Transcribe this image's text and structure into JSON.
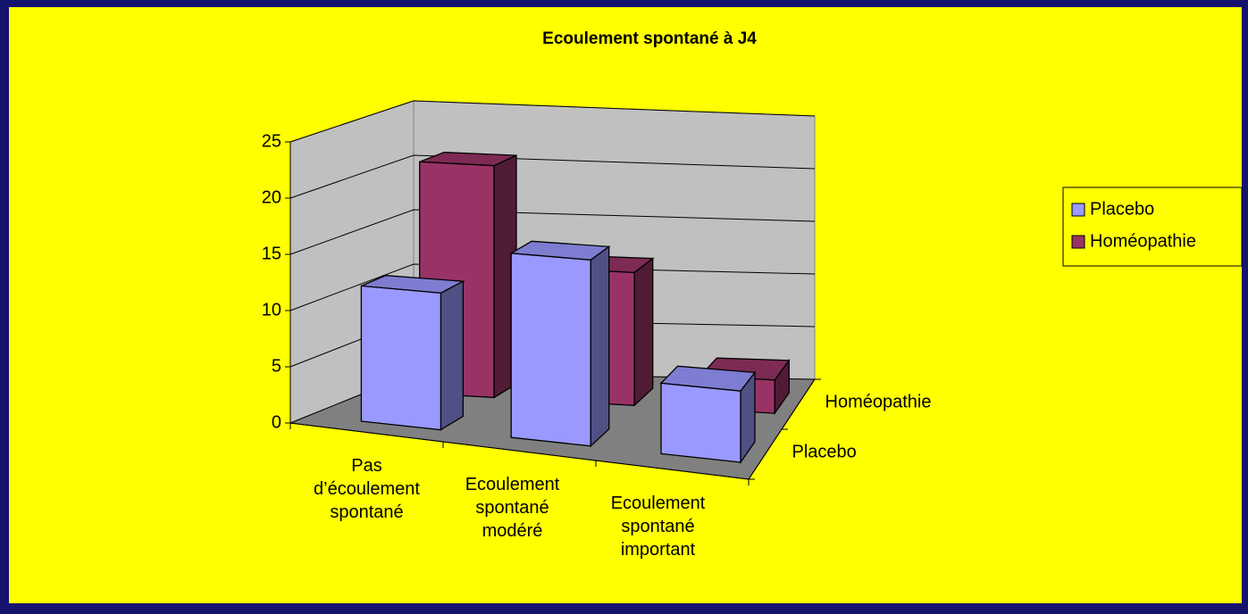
{
  "chart_data": {
    "type": "bar3d",
    "title": "Ecoulement spontané à J4",
    "categories": [
      "Pas d’écoulement spontané",
      "Ecoulement spontané modéré",
      "Ecoulement spontané important"
    ],
    "series": [
      {
        "name": "Placebo",
        "color": "#9999ff",
        "values": [
          12,
          16,
          6
        ]
      },
      {
        "name": "Homéopathie",
        "color": "#993366",
        "values": [
          21,
          12,
          3
        ]
      }
    ],
    "ylim": [
      0,
      25
    ],
    "yticks": [
      0,
      5,
      10,
      15,
      20,
      25
    ],
    "grid": true,
    "legend": "right"
  }
}
